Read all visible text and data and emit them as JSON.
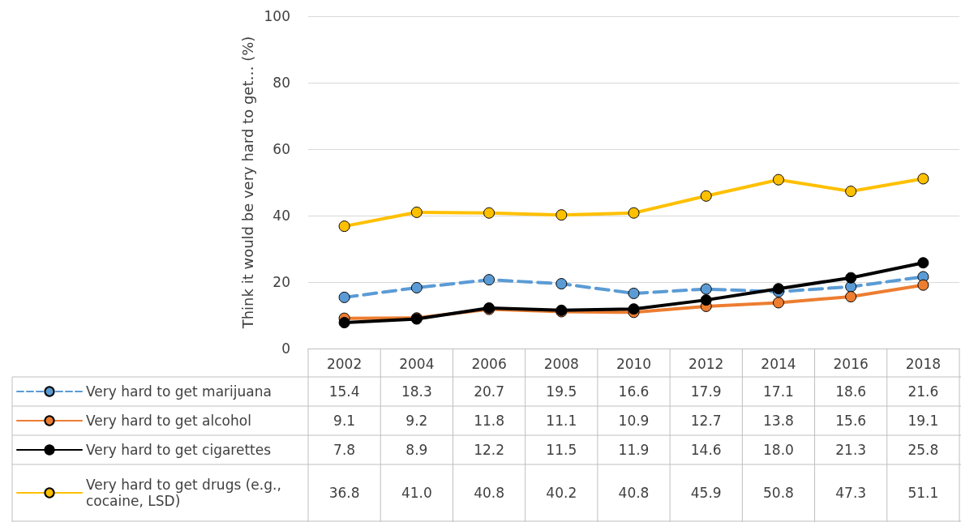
{
  "chart_data": {
    "type": "line",
    "ylabel": "Think it would be very hard to get… (%)",
    "categories": [
      "2002",
      "2004",
      "2006",
      "2008",
      "2010",
      "2012",
      "2014",
      "2016",
      "2018"
    ],
    "series": [
      {
        "name": "Very hard to get marijuana",
        "color": "#5b9bd5",
        "line_style": "dashed",
        "values": [
          15.4,
          18.3,
          20.7,
          19.5,
          16.6,
          17.9,
          17.1,
          18.6,
          21.6
        ],
        "value_labels": [
          "15.4",
          "18.3",
          "20.7",
          "19.5",
          "16.6",
          "17.9",
          "17.1",
          "18.6",
          "21.6"
        ]
      },
      {
        "name": "Very hard to get alcohol",
        "color": "#ed7d31",
        "values": [
          9.1,
          9.2,
          11.8,
          11.1,
          10.9,
          12.7,
          13.8,
          15.6,
          19.1
        ],
        "value_labels": [
          "9.1",
          "9.2",
          "11.8",
          "11.1",
          "10.9",
          "12.7",
          "13.8",
          "15.6",
          "19.1"
        ]
      },
      {
        "name": "Very hard to get cigarettes",
        "color": "#000000",
        "values": [
          7.8,
          8.9,
          12.2,
          11.5,
          11.9,
          14.6,
          18.0,
          21.3,
          25.8
        ],
        "value_labels": [
          "7.8",
          "8.9",
          "12.2",
          "11.5",
          "11.9",
          "14.6",
          "18.0",
          "21.3",
          "25.8"
        ]
      },
      {
        "name": "Very hard to get drugs (e.g., cocaine, LSD)",
        "color": "#ffc000",
        "values": [
          36.8,
          41.0,
          40.8,
          40.2,
          40.8,
          45.9,
          50.8,
          47.3,
          51.1
        ],
        "value_labels": [
          "36.8",
          "41.0",
          "40.8",
          "40.2",
          "40.8",
          "45.9",
          "50.8",
          "47.3",
          "51.1"
        ]
      }
    ],
    "ylim": [
      0,
      100
    ],
    "yticks": [
      0,
      20,
      40,
      60,
      80,
      100
    ],
    "grid": "y",
    "legend": "bottom",
    "marker": "circle",
    "line_style": "solid"
  }
}
